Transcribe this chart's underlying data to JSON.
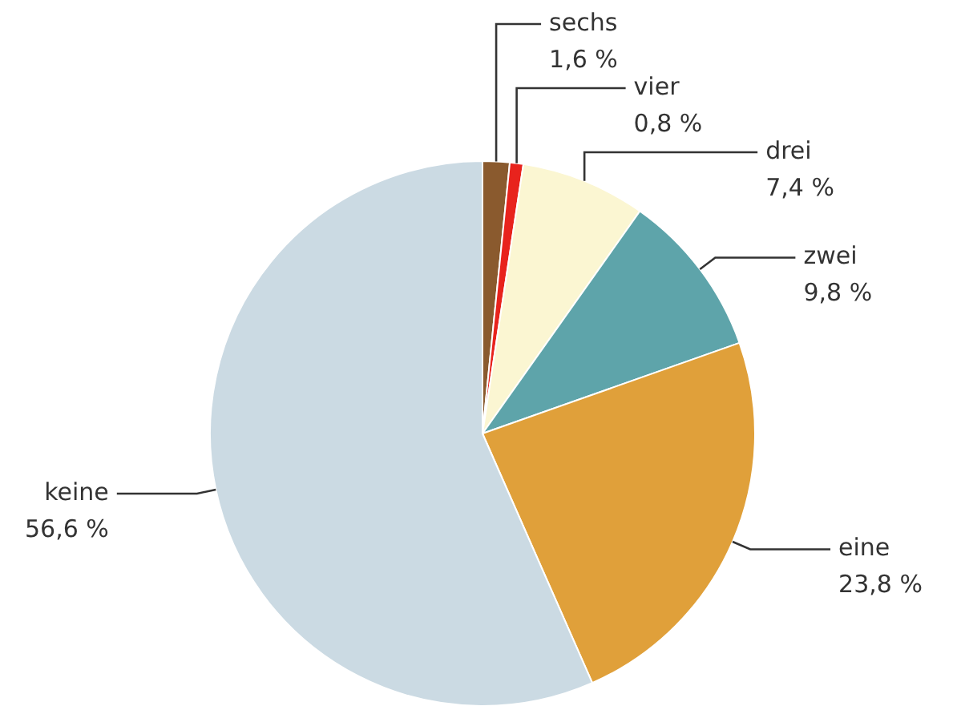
{
  "chart_data": {
    "type": "pie",
    "categories": [
      "sechs",
      "vier",
      "drei",
      "zwei",
      "eine",
      "keine"
    ],
    "values": [
      1.6,
      0.8,
      7.4,
      9.8,
      23.8,
      56.6
    ],
    "value_labels": [
      "1,6 %",
      "0,8 %",
      "7,4 %",
      "9,8 %",
      "23,8 %",
      "56,6 %"
    ],
    "colors": [
      "#8a5a2e",
      "#e8231d",
      "#fbf6d2",
      "#5ea4aa",
      "#e0a03a",
      "#cbdae3"
    ],
    "legend": false
  }
}
